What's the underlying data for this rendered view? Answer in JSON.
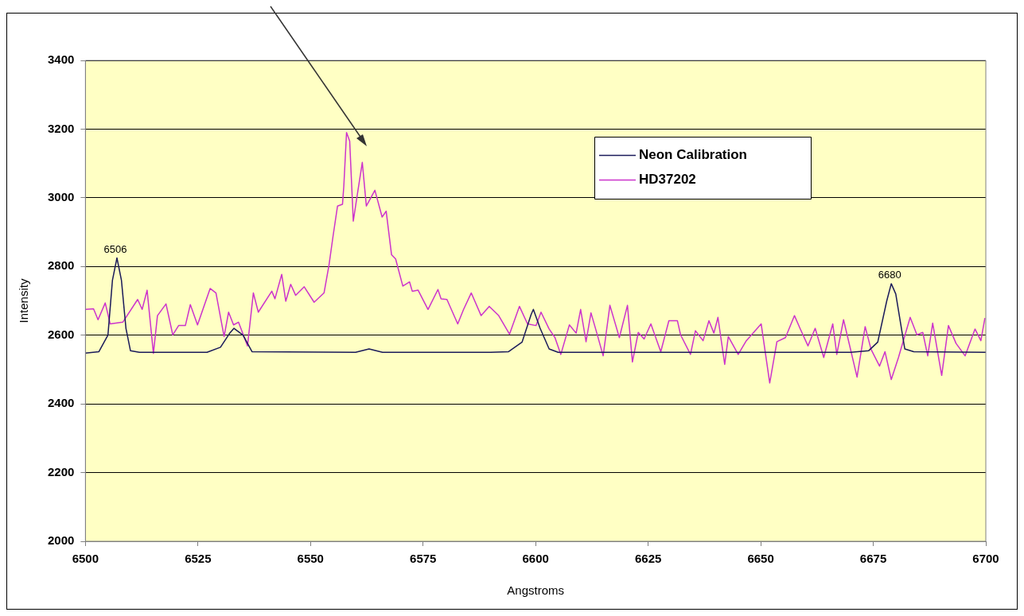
{
  "chart_data": {
    "type": "line",
    "xlabel": "Angstroms",
    "ylabel": "Intensity",
    "xlim": [
      6500,
      6700
    ],
    "xticks": [
      6500,
      6525,
      6550,
      6575,
      6600,
      6625,
      6650,
      6675,
      6700
    ],
    "ylim": [
      2000,
      3400
    ],
    "yticks": [
      2000,
      2200,
      2400,
      2600,
      2800,
      3000,
      3200,
      3400
    ],
    "grid": "y",
    "legend": "top right",
    "marker": "none",
    "line_style": "solid",
    "annotations": [
      {
        "text": "6506",
        "x": 6507,
        "y": 2825
      },
      {
        "text": "6680",
        "x": 6679,
        "y": 2750
      }
    ],
    "series": [
      {
        "name": "Neon Calibration",
        "color": "#1a1a5a",
        "x": [
          6500,
          6503,
          6505,
          6506,
          6507,
          6508,
          6509,
          6510,
          6512,
          6527,
          6530,
          6532,
          6533,
          6535,
          6537,
          6560,
          6563,
          6566,
          6590,
          6594,
          6597,
          6599,
          6599.5,
          6601,
          6603,
          6605,
          6670,
          6674,
          6676,
          6678,
          6679,
          6680,
          6681,
          6682,
          6684,
          6700
        ],
        "values": [
          2548,
          2552,
          2600,
          2760,
          2825,
          2760,
          2620,
          2555,
          2550,
          2550,
          2565,
          2605,
          2620,
          2600,
          2552,
          2550,
          2560,
          2550,
          2550,
          2552,
          2580,
          2660,
          2675,
          2620,
          2560,
          2550,
          2550,
          2555,
          2580,
          2700,
          2750,
          2720,
          2640,
          2560,
          2552,
          2550
        ]
      },
      {
        "name": "HD37202",
        "color": "#cc33cc",
        "x": [
          6500,
          6501.8,
          6502.8,
          6504.4,
          6505.5,
          6508.3,
          6511.6,
          6512.6,
          6513.7,
          6515.1,
          6516,
          6517.9,
          6519.4,
          6520.7,
          6522.2,
          6523.3,
          6524.9,
          6527.7,
          6529,
          6530.8,
          6531.8,
          6532.9,
          6534,
          6536,
          6537.3,
          6538.4,
          6541.4,
          6542.1,
          6543.6,
          6544.5,
          6545.6,
          6546.7,
          6548.6,
          6550.8,
          6553,
          6554.1,
          6555,
          6556,
          6557.1,
          6557.4,
          6558,
          6558.7,
          6559.5,
          6560.4,
          6561.5,
          6562.4,
          6564.3,
          6565.9,
          6566.8,
          6568,
          6568.9,
          6570.5,
          6572,
          6572.6,
          6573.9,
          6576.1,
          6578.3,
          6579,
          6580.3,
          6582.7,
          6584,
          6585.7,
          6587.9,
          6589.7,
          6591.8,
          6594.2,
          6596.4,
          6598.2,
          6600.1,
          6601.2,
          6603,
          6604.3,
          6605.6,
          6607.5,
          6609,
          6610,
          6611.2,
          6612.3,
          6613.6,
          6615,
          6616.5,
          6618.6,
          6620.4,
          6621.5,
          6622.8,
          6624.1,
          6625.6,
          6627.8,
          6629.6,
          6631.5,
          6632.2,
          6634.4,
          6635.5,
          6637.2,
          6638.5,
          6639.6,
          6640.5,
          6642,
          6642.8,
          6645,
          6646.8,
          6650.1,
          6652,
          6653.6,
          6655.5,
          6657.5,
          6658.8,
          6660.5,
          6662.1,
          6664,
          6666,
          6666.9,
          6668.4,
          6671.4,
          6673.2,
          6674.5,
          6676.4,
          6677.6,
          6679,
          6680.6,
          6683.2,
          6684.7,
          6686,
          6687.1,
          6688.2,
          6690.2,
          6691.7,
          6693.4,
          6695.4,
          6697.6,
          6698.9,
          6699.8
        ],
        "values": [
          2675,
          2677,
          2645,
          2694,
          2633,
          2638,
          2704,
          2675,
          2731,
          2547,
          2657,
          2691,
          2601,
          2628,
          2628,
          2689,
          2630,
          2736,
          2723,
          2596,
          2667,
          2630,
          2638,
          2569,
          2723,
          2667,
          2728,
          2706,
          2777,
          2699,
          2748,
          2716,
          2741,
          2696,
          2723,
          2804,
          2888,
          2976,
          2981,
          3035,
          3190,
          3165,
          2932,
          3010,
          3103,
          2976,
          3022,
          2944,
          2961,
          2834,
          2822,
          2743,
          2755,
          2728,
          2731,
          2675,
          2733,
          2706,
          2704,
          2633,
          2675,
          2723,
          2657,
          2684,
          2657,
          2603,
          2684,
          2633,
          2628,
          2667,
          2618,
          2593,
          2544,
          2630,
          2606,
          2675,
          2581,
          2665,
          2606,
          2540,
          2687,
          2593,
          2687,
          2522,
          2608,
          2589,
          2633,
          2552,
          2642,
          2642,
          2601,
          2544,
          2613,
          2584,
          2642,
          2606,
          2652,
          2515,
          2596,
          2544,
          2584,
          2633,
          2461,
          2581,
          2593,
          2657,
          2618,
          2569,
          2620,
          2535,
          2633,
          2544,
          2645,
          2478,
          2625,
          2559,
          2510,
          2552,
          2471,
          2535,
          2652,
          2601,
          2608,
          2540,
          2635,
          2483,
          2628,
          2576,
          2540,
          2618,
          2584,
          2650
        ]
      }
    ]
  }
}
